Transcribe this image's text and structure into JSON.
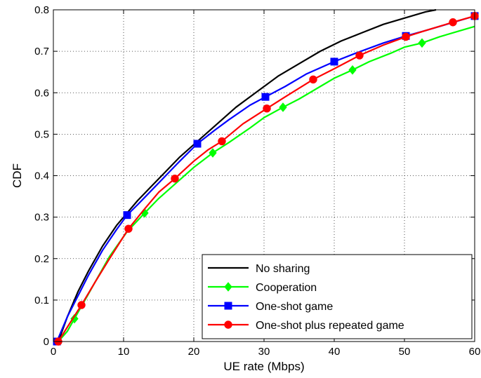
{
  "chart_data": {
    "type": "line",
    "title": "",
    "xlabel": "UE rate (Mbps)",
    "ylabel": "CDF",
    "xlim": [
      0,
      60
    ],
    "ylim": [
      0,
      0.8
    ],
    "xticks": [
      0,
      10,
      20,
      30,
      40,
      50,
      60
    ],
    "yticks": [
      0,
      0.1,
      0.2,
      0.3,
      0.4,
      0.5,
      0.6,
      0.7,
      0.8
    ],
    "xtick_labels": [
      "0",
      "10",
      "20",
      "30",
      "40",
      "50",
      "60"
    ],
    "ytick_labels": [
      "0",
      "0.1",
      "0.2",
      "0.3",
      "0.4",
      "0.5",
      "0.6",
      "0.7",
      "0.8"
    ],
    "grid": true,
    "legend_position": "bottom-right",
    "series": [
      {
        "name": "No sharing",
        "color": "#000000",
        "marker": "none",
        "x": [
          0.7,
          2,
          3.5,
          5,
          7,
          9,
          10.5,
          12,
          14,
          16,
          18,
          20,
          22,
          24,
          26,
          28,
          30,
          32,
          35,
          38,
          41,
          44,
          47,
          50,
          53,
          54.5
        ],
        "y": [
          0,
          0.06,
          0.12,
          0.17,
          0.23,
          0.28,
          0.31,
          0.34,
          0.375,
          0.41,
          0.445,
          0.475,
          0.505,
          0.535,
          0.565,
          0.59,
          0.615,
          0.64,
          0.67,
          0.7,
          0.725,
          0.745,
          0.765,
          0.78,
          0.795,
          0.8
        ]
      },
      {
        "name": "Cooperation",
        "color": "#00ff00",
        "marker": "diamond",
        "x": [
          0.7,
          2,
          3,
          4.5,
          6,
          8,
          10.5,
          13,
          15,
          17,
          20,
          22.7,
          25,
          28,
          30,
          32.7,
          35,
          38,
          40,
          42.6,
          45,
          48,
          50,
          52.5,
          55,
          58,
          60
        ],
        "y": [
          0,
          0.025,
          0.055,
          0.1,
          0.145,
          0.205,
          0.265,
          0.31,
          0.345,
          0.375,
          0.42,
          0.455,
          0.48,
          0.515,
          0.54,
          0.565,
          0.585,
          0.615,
          0.635,
          0.655,
          0.675,
          0.695,
          0.71,
          0.72,
          0.735,
          0.75,
          0.76
        ]
      },
      {
        "name": "One-shot game",
        "color": "#0000ff",
        "marker": "square",
        "x": [
          0.5,
          2,
          3.5,
          5,
          7,
          9,
          10.5,
          12,
          14,
          16,
          18,
          20.5,
          23,
          25,
          28,
          30.2,
          33,
          36,
          40,
          43,
          47,
          50.2,
          53,
          56,
          60
        ],
        "y": [
          0,
          0.06,
          0.11,
          0.16,
          0.22,
          0.27,
          0.305,
          0.33,
          0.365,
          0.4,
          0.435,
          0.477,
          0.51,
          0.535,
          0.57,
          0.59,
          0.615,
          0.645,
          0.675,
          0.695,
          0.72,
          0.737,
          0.75,
          0.765,
          0.785
        ]
      },
      {
        "name": "One-shot plus repeated game",
        "color": "#ff0000",
        "marker": "circle",
        "x": [
          0.7,
          2,
          4,
          6,
          8,
          10.7,
          13,
          15,
          17.3,
          20,
          22,
          24,
          27,
          30.4,
          33,
          37,
          40,
          43.6,
          47,
          50.2,
          53,
          56.9,
          60
        ],
        "y": [
          0,
          0.035,
          0.088,
          0.145,
          0.2,
          0.272,
          0.32,
          0.36,
          0.393,
          0.435,
          0.462,
          0.483,
          0.525,
          0.562,
          0.59,
          0.632,
          0.658,
          0.69,
          0.715,
          0.735,
          0.75,
          0.77,
          0.785
        ]
      }
    ]
  }
}
